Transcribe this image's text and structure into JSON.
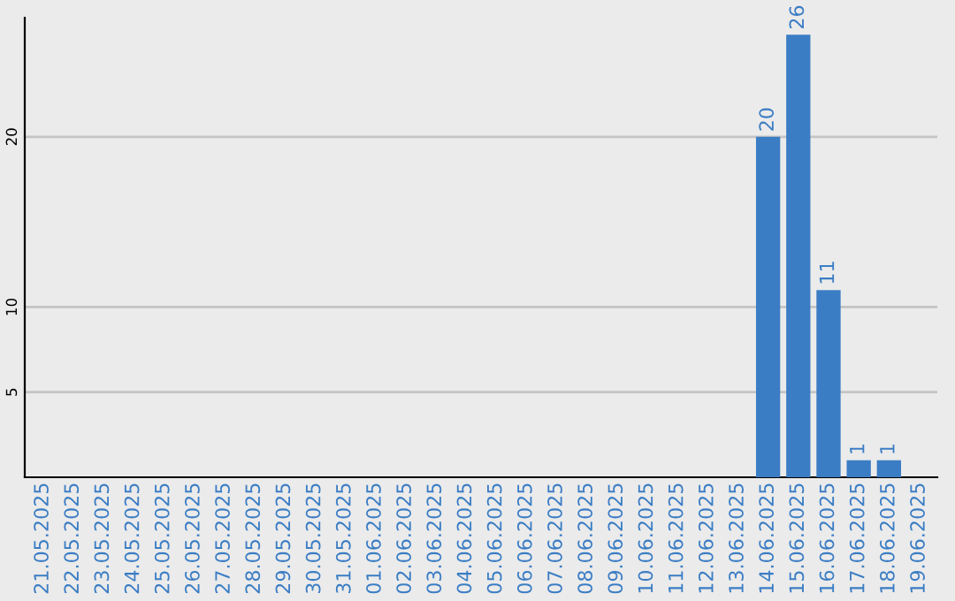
{
  "chart_data": {
    "type": "bar",
    "categories": [
      "21.05.2025",
      "22.05.2025",
      "23.05.2025",
      "24.05.2025",
      "25.05.2025",
      "26.05.2025",
      "27.05.2025",
      "28.05.2025",
      "29.05.2025",
      "30.05.2025",
      "31.05.2025",
      "01.06.2025",
      "02.06.2025",
      "03.06.2025",
      "04.06.2025",
      "05.06.2025",
      "06.06.2025",
      "07.06.2025",
      "08.06.2025",
      "09.06.2025",
      "10.06.2025",
      "11.06.2025",
      "12.06.2025",
      "13.06.2025",
      "14.06.2025",
      "15.06.2025",
      "16.06.2025",
      "17.06.2025",
      "18.06.2025",
      "19.06.2025"
    ],
    "values": [
      0,
      0,
      0,
      0,
      0,
      0,
      0,
      0,
      0,
      0,
      0,
      0,
      0,
      0,
      0,
      0,
      0,
      0,
      0,
      0,
      0,
      0,
      0,
      0,
      20,
      26,
      11,
      1,
      1,
      0
    ],
    "value_labels": [
      null,
      null,
      null,
      null,
      null,
      null,
      null,
      null,
      null,
      null,
      null,
      null,
      null,
      null,
      null,
      null,
      null,
      null,
      null,
      null,
      null,
      null,
      null,
      null,
      "20",
      "26",
      "11",
      "1",
      "1",
      null
    ],
    "color": "#3b7dc4",
    "ylim": [
      0,
      27
    ],
    "yticks": [
      5,
      10,
      20
    ],
    "grid": "y"
  }
}
